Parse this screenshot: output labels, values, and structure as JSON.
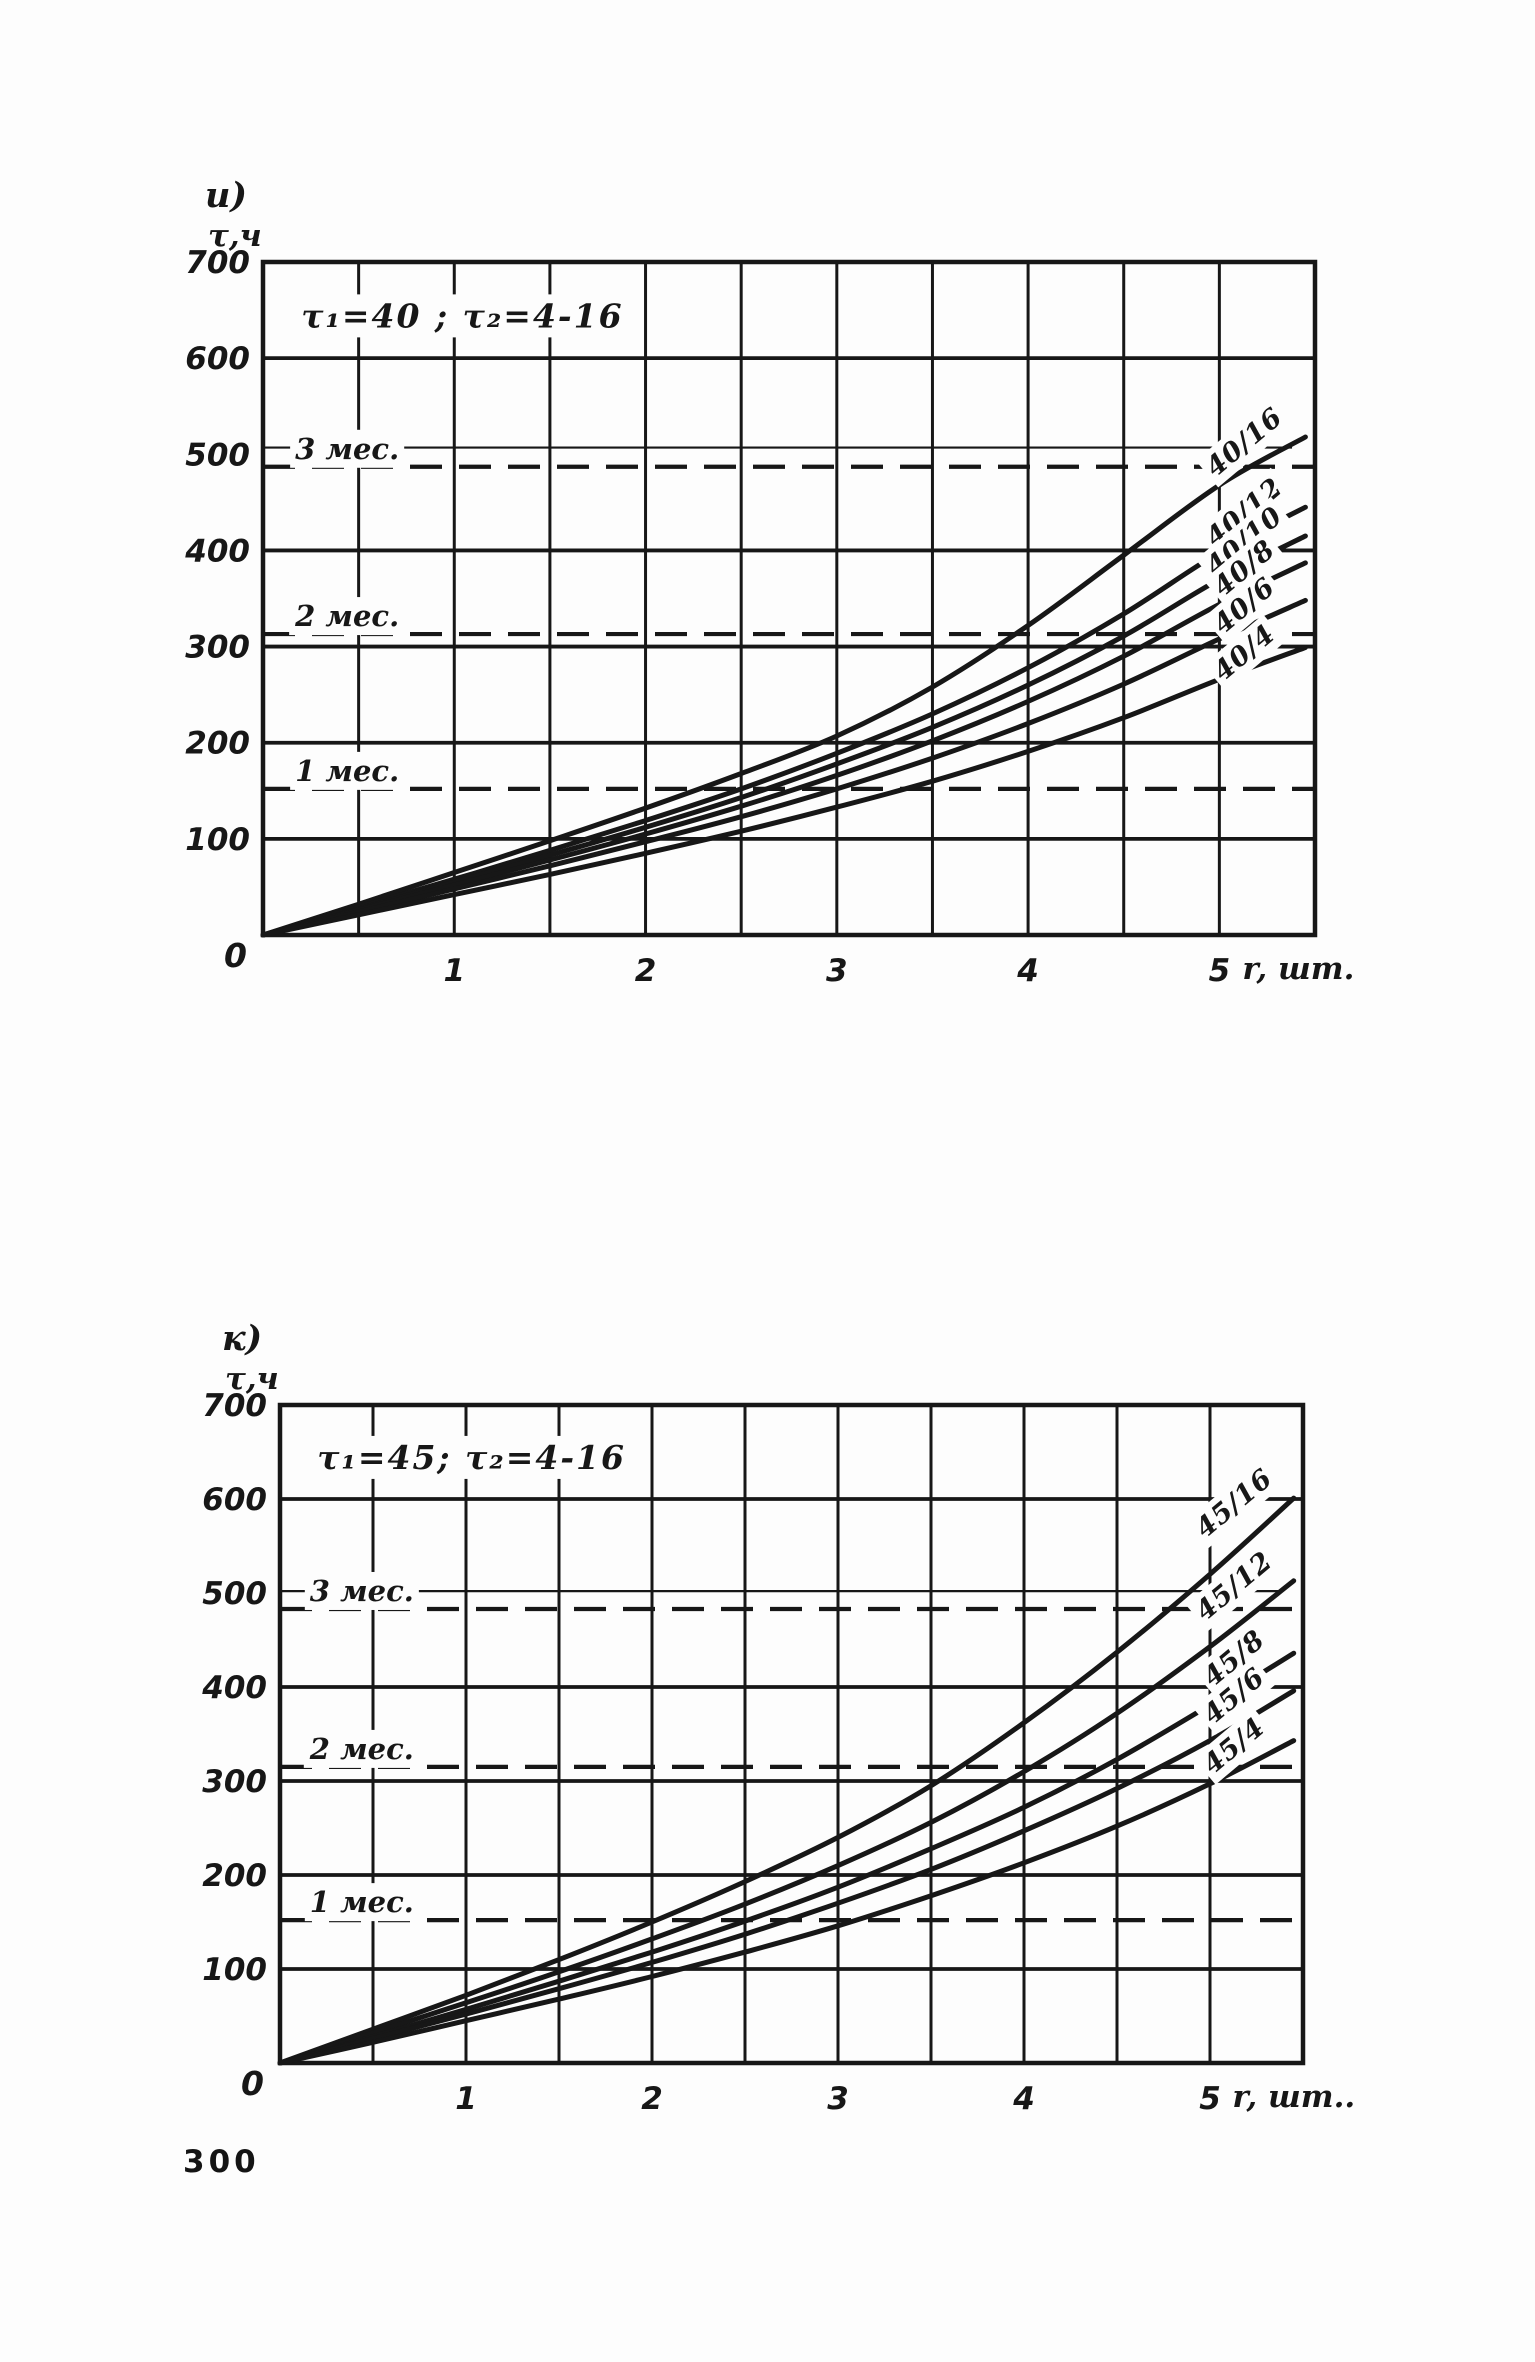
{
  "page": {
    "number": "300",
    "ink": "#171717",
    "paper": "#fdfdfd"
  },
  "chart_data": [
    {
      "id": "chart-i",
      "type": "line",
      "panel_label": "и)",
      "ylabel": "τ,ч",
      "xlabel": "r, шт.",
      "title": "τ₁=40 ;  τ₂=4-16",
      "xlim": [
        0,
        5.5
      ],
      "ylim": [
        0,
        700
      ],
      "x_tick_values": [
        0,
        1,
        2,
        3,
        4,
        5
      ],
      "y_tick_values": [
        0,
        100,
        200,
        300,
        400,
        500,
        600,
        700
      ],
      "x_grid_step": 0.5,
      "y_grid_values": [
        100,
        200,
        300,
        400,
        600
      ],
      "grid": true,
      "legend_position": "curve-ends",
      "x": [
        0,
        0.5,
        1,
        1.5,
        2,
        2.5,
        3,
        3.5,
        4,
        4.5,
        5,
        5.45
      ],
      "series": [
        {
          "name": "40/16",
          "values": [
            0,
            32,
            65,
            98,
            132,
            168,
            207,
            258,
            322,
            395,
            468,
            518
          ]
        },
        {
          "name": "40/12",
          "values": [
            0,
            29,
            58,
            88,
            119,
            152,
            189,
            230,
            278,
            334,
            398,
            445
          ]
        },
        {
          "name": "40/10",
          "values": [
            0,
            27,
            55,
            83,
            112,
            143,
            178,
            216,
            260,
            311,
            370,
            415
          ]
        },
        {
          "name": "40/8",
          "values": [
            0,
            26,
            52,
            78,
            105,
            134,
            166,
            202,
            243,
            290,
            344,
            387
          ]
        },
        {
          "name": "40/6",
          "values": [
            0,
            24,
            48,
            72,
            97,
            123,
            152,
            184,
            220,
            261,
            308,
            348
          ]
        },
        {
          "name": "40/4",
          "values": [
            0,
            21,
            42,
            63,
            85,
            108,
            133,
            160,
            191,
            226,
            266,
            299
          ]
        }
      ],
      "reference_lines": [
        {
          "label": "3 мес.",
          "style": "dashed",
          "value": 487
        },
        {
          "label": "",
          "style": "thin",
          "value": 507
        },
        {
          "label": "2 мес.",
          "style": "dashed",
          "value": 313
        },
        {
          "label": "1 мес.",
          "style": "dashed",
          "value": 152
        }
      ]
    },
    {
      "id": "chart-k",
      "type": "line",
      "panel_label": "к)",
      "ylabel": "τ,ч",
      "xlabel": "r, шт..",
      "title": "τ₁=45;  τ₂=4-16",
      "xlim": [
        0,
        5.5
      ],
      "ylim": [
        0,
        700
      ],
      "x_tick_values": [
        0,
        1,
        2,
        3,
        4,
        5
      ],
      "y_tick_values": [
        0,
        100,
        200,
        300,
        400,
        500,
        600,
        700
      ],
      "x_grid_step": 0.5,
      "y_grid_values": [
        100,
        200,
        300,
        400,
        600
      ],
      "grid": true,
      "legend_position": "curve-ends",
      "x": [
        0,
        0.5,
        1,
        1.5,
        2,
        2.5,
        3,
        3.5,
        4,
        4.5,
        5,
        5.45
      ],
      "series": [
        {
          "name": "45/16",
          "values": [
            0,
            36,
            72,
            110,
            150,
            193,
            240,
            295,
            362,
            437,
            520,
            601
          ]
        },
        {
          "name": "45/12",
          "values": [
            0,
            32,
            64,
            97,
            132,
            169,
            210,
            256,
            310,
            372,
            443,
            513
          ]
        },
        {
          "name": "45/8",
          "values": [
            0,
            28,
            57,
            87,
            118,
            151,
            187,
            228,
            272,
            323,
            381,
            436
          ]
        },
        {
          "name": "45/6",
          "values": [
            0,
            26,
            52,
            79,
            107,
            137,
            170,
            206,
            247,
            292,
            343,
            396
          ]
        },
        {
          "name": "45/4",
          "values": [
            0,
            22,
            45,
            68,
            92,
            118,
            146,
            178,
            213,
            252,
            297,
            343
          ]
        }
      ],
      "reference_lines": [
        {
          "label": "3 мес.",
          "style": "dashed",
          "value": 483
        },
        {
          "label": "",
          "style": "thin",
          "value": 502
        },
        {
          "label": "2 мес.",
          "style": "dashed",
          "value": 315
        },
        {
          "label": "1 мес.",
          "style": "dashed",
          "value": 152
        }
      ]
    }
  ]
}
